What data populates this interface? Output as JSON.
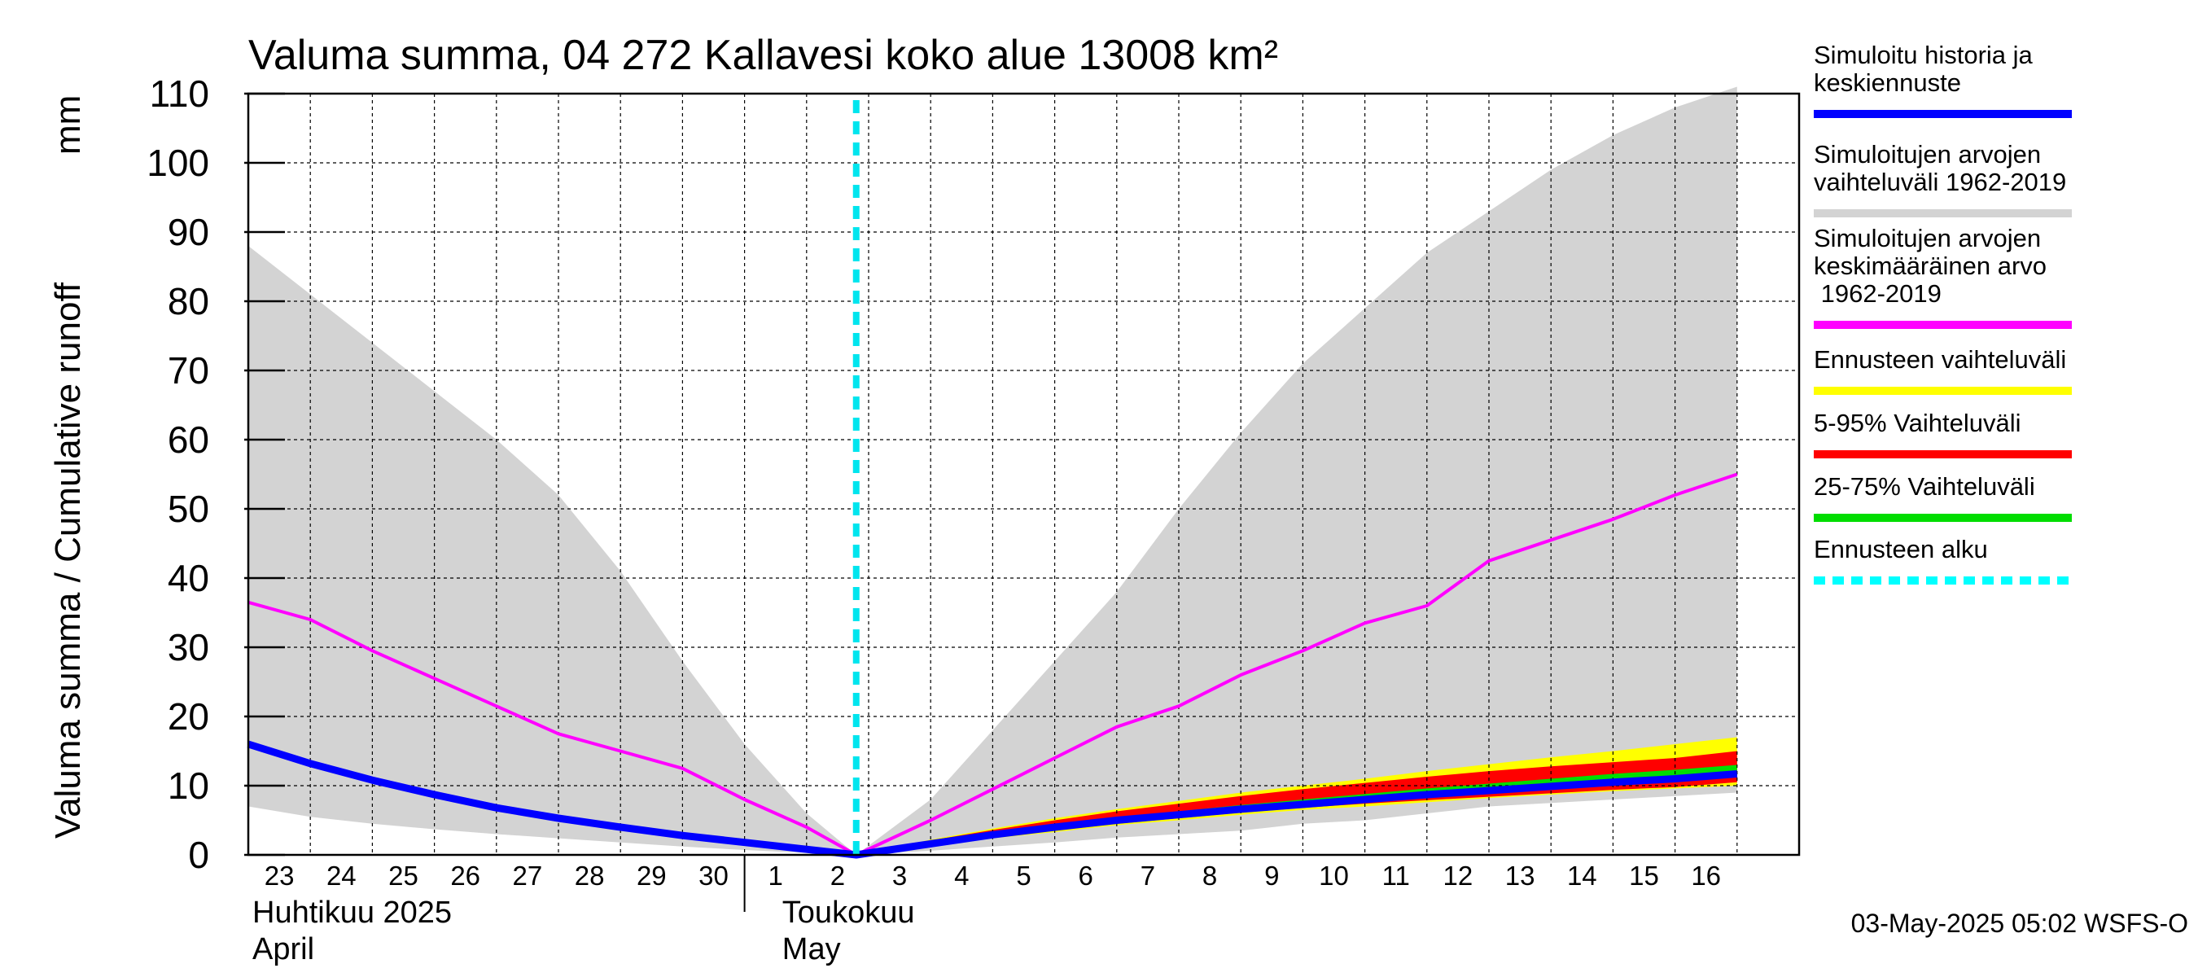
{
  "chart_data": {
    "type": "area",
    "title": "Valuma summa, 04 272 Kallavesi koko alue 13008 km²",
    "ylabel": "Valuma summa / Cumulative runoff",
    "yunit": "mm",
    "ylim": [
      0,
      110
    ],
    "yticks": [
      0,
      10,
      20,
      30,
      40,
      50,
      60,
      70,
      80,
      90,
      100,
      110
    ],
    "x_start_date": "2025-04-23",
    "x_days": 25,
    "x_tick_labels": [
      "23",
      "24",
      "25",
      "26",
      "27",
      "28",
      "29",
      "30",
      "1",
      "2",
      "3",
      "4",
      "5",
      "6",
      "7",
      "8",
      "9",
      "10",
      "11",
      "12",
      "13",
      "14",
      "15",
      "16"
    ],
    "month_labels": [
      {
        "fi": "Huhtikuu  2025",
        "en": "April",
        "day_index": 0
      },
      {
        "fi": "Toukokuu",
        "en": "May",
        "day_index": 9
      }
    ],
    "forecast_start_day": 9.8,
    "grid": true,
    "legend_position": "right",
    "series": [
      {
        "name": "Simuloitujen arvojen vaihteluväli 1962-2019",
        "kind": "band",
        "color": "#d3d3d3",
        "x": [
          0,
          1,
          2,
          3,
          4,
          5,
          6,
          7,
          8,
          9,
          9.8,
          11,
          12,
          13,
          14,
          15,
          16,
          17,
          18,
          19,
          20,
          21,
          22,
          23,
          24
        ],
        "upper": [
          88,
          81,
          74,
          67,
          60,
          52,
          41,
          28,
          16,
          6,
          0,
          8,
          18,
          28,
          38,
          50,
          61,
          71,
          79,
          87,
          93,
          99,
          104,
          108,
          111
        ],
        "lower": [
          7,
          5.5,
          4.5,
          3.7,
          3,
          2.4,
          1.8,
          1.2,
          0.7,
          0.3,
          0,
          0.6,
          1.2,
          1.8,
          2.5,
          3,
          3.5,
          4.5,
          5,
          6,
          7,
          7.5,
          8,
          8.5,
          9
        ]
      },
      {
        "name": "Ennusteen vaihteluväli",
        "kind": "band",
        "color": "#ffff00",
        "x": [
          9.8,
          11,
          12,
          13,
          14,
          15,
          16,
          17,
          18,
          19,
          20,
          21,
          22,
          23,
          24
        ],
        "upper": [
          0,
          2.2,
          3.8,
          5.3,
          6.6,
          7.8,
          9,
          10,
          11,
          12.1,
          13.1,
          14.1,
          15,
          16,
          17
        ],
        "lower": [
          0,
          1.2,
          2.4,
          3.3,
          4.3,
          5,
          5.8,
          6.5,
          7,
          7.6,
          8.2,
          8.7,
          9.2,
          9.6,
          10
        ]
      },
      {
        "name": "5-95% Vaihteluväli",
        "kind": "band",
        "color": "#ff0000",
        "x": [
          9.8,
          11,
          12,
          13,
          14,
          15,
          16,
          17,
          18,
          19,
          20,
          21,
          22,
          23,
          24
        ],
        "upper": [
          0,
          2.1,
          3.6,
          5,
          6.3,
          7.4,
          8.5,
          9.5,
          10.4,
          11.3,
          12.1,
          12.8,
          13.4,
          14,
          15
        ],
        "lower": [
          0,
          1.4,
          2.6,
          3.5,
          4.5,
          5.3,
          6.1,
          6.8,
          7.4,
          7.9,
          8.4,
          8.9,
          9.4,
          9.8,
          10.5
        ]
      },
      {
        "name": "25-75% Vaihteluväli",
        "kind": "band",
        "color": "#00dd00",
        "x": [
          9.8,
          11,
          12,
          13,
          14,
          15,
          16,
          17,
          18,
          19,
          20,
          21,
          22,
          23,
          24
        ],
        "upper": [
          0,
          1.9,
          3.2,
          4.4,
          5.4,
          6.3,
          7.2,
          8,
          8.8,
          9.6,
          10.3,
          11,
          11.7,
          12.3,
          13
        ],
        "lower": [
          0,
          1.7,
          2.9,
          3.9,
          4.8,
          5.6,
          6.4,
          7.1,
          7.8,
          8.4,
          9,
          9.6,
          10.2,
          10.7,
          11.2
        ]
      },
      {
        "name": "Simuloitujen arvojen keskimääräinen arvo 1962-2019",
        "kind": "line",
        "color": "#ff00ff",
        "x": [
          0,
          1,
          2,
          3,
          4,
          5,
          6,
          7,
          8,
          9,
          9.8,
          11,
          12,
          13,
          14,
          15,
          16,
          17,
          18,
          19,
          20,
          21,
          22,
          23,
          24
        ],
        "y": [
          36.5,
          34,
          29.5,
          25.5,
          21.5,
          17.5,
          15,
          12.5,
          8,
          4,
          0,
          5,
          9.5,
          14,
          18.5,
          21.5,
          26,
          29.5,
          33.5,
          36,
          42.5,
          45.5,
          48.5,
          52,
          55
        ]
      },
      {
        "name": "Simuloitu historia ja keskiennuste",
        "kind": "line",
        "color": "#0000ff",
        "x": [
          0,
          1,
          2,
          3,
          4,
          5,
          6,
          7,
          8,
          9,
          9.8,
          11,
          12,
          13,
          14,
          15,
          16,
          17,
          18,
          19,
          20,
          21,
          22,
          23,
          24
        ],
        "y": [
          16,
          13.2,
          10.8,
          8.7,
          6.8,
          5.3,
          4,
          2.8,
          1.8,
          0.8,
          0,
          1.6,
          2.9,
          4,
          5,
          5.8,
          6.6,
          7.3,
          8,
          8.7,
          9.3,
          9.9,
          10.5,
          11,
          11.7
        ]
      }
    ],
    "legend": [
      {
        "label": "Simuloitu historia ja\nkeskiennuste",
        "color": "#0000ff",
        "style": "solid"
      },
      {
        "label": "Simuloitujen arvojen\nvaihteluväli 1962-2019",
        "color": "#d3d3d3",
        "style": "solid"
      },
      {
        "label": "Simuloitujen arvojen\nkeskimääräinen arvo\n   1962-2019",
        "color": "#ff00ff",
        "style": "solid"
      },
      {
        "label": "Ennusteen vaihteluväli",
        "color": "#ffff00",
        "style": "solid"
      },
      {
        "label": "5-95% Vaihteluväli",
        "color": "#ff0000",
        "style": "solid"
      },
      {
        "label": "25-75% Vaihteluväli",
        "color": "#00dd00",
        "style": "solid"
      },
      {
        "label": "Ennusteen alku",
        "color": "#00ffff",
        "style": "dashed"
      }
    ],
    "timestamp": "03-May-2025 05:02 WSFS-O"
  }
}
